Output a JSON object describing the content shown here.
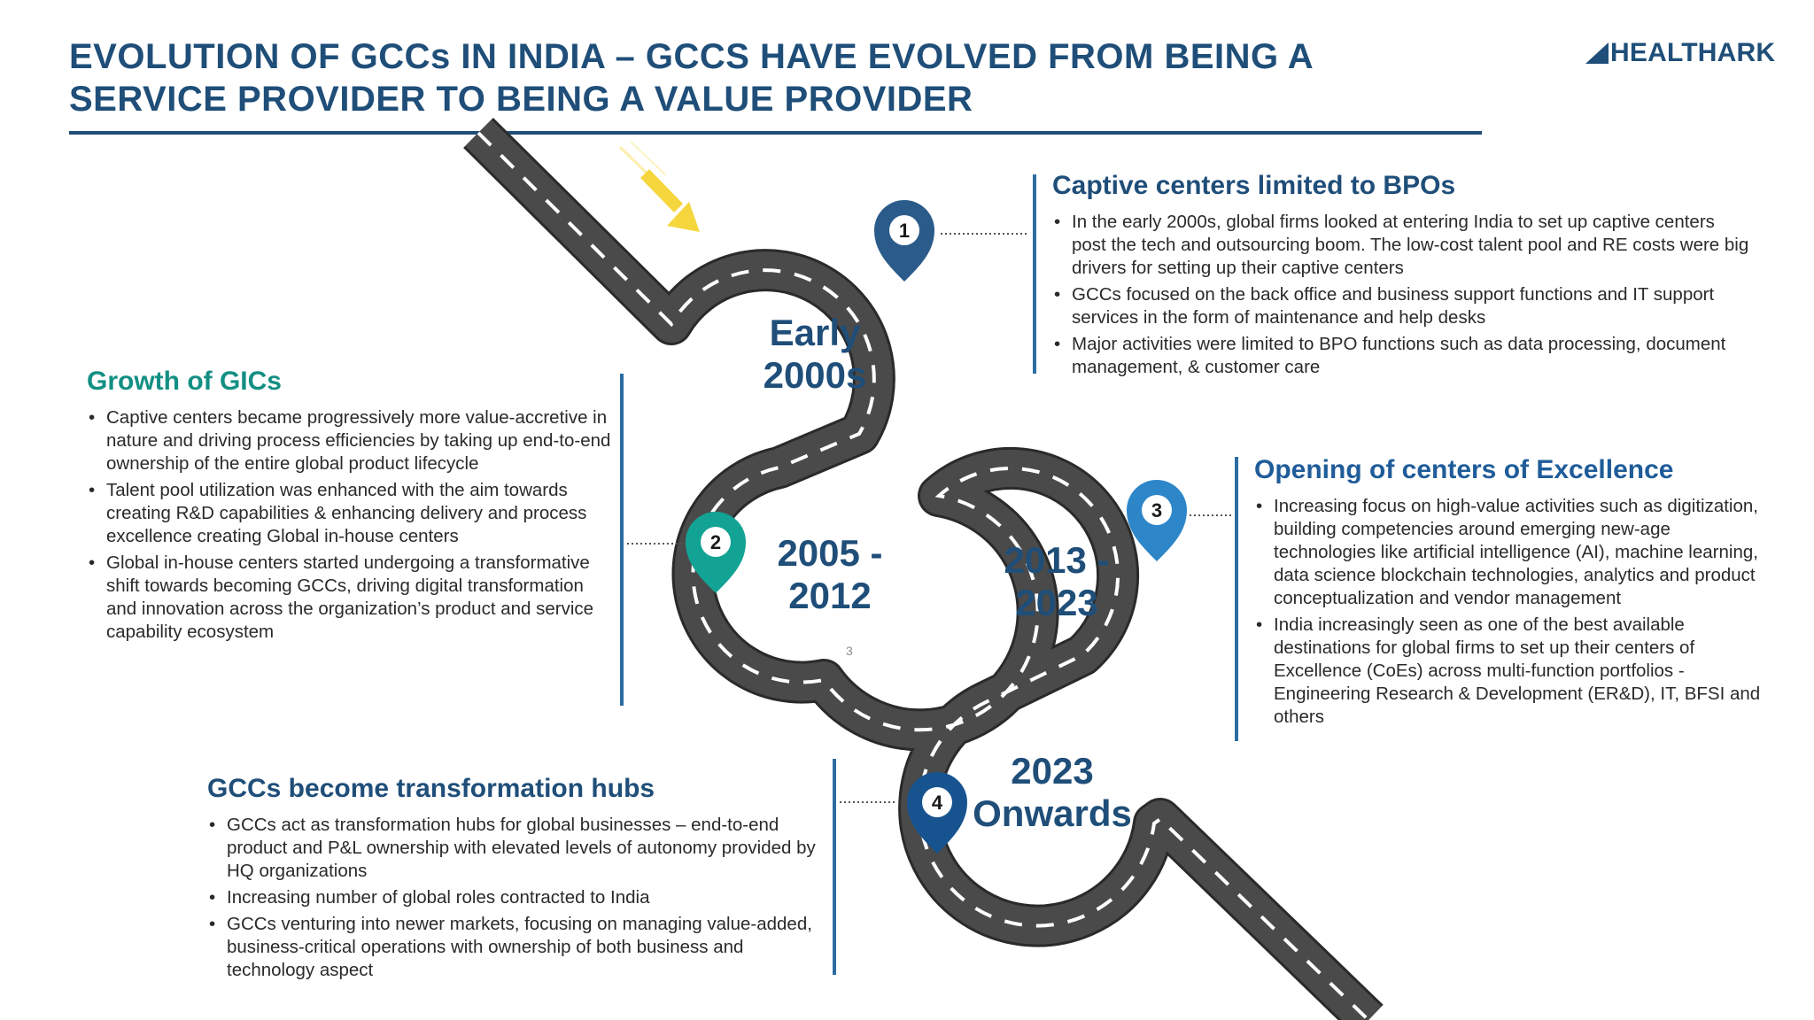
{
  "title": "EVOLUTION OF GCCs IN INDIA – GCCS HAVE EVOLVED FROM BEING A SERVICE PROVIDER TO BEING A VALUE PROVIDER",
  "logo": {
    "text": "HEALTHARK",
    "icon": "triangle-logo-icon"
  },
  "colors": {
    "title": "#1f4e79",
    "road": "#4a4a4a",
    "road_edge": "#2a2a2a",
    "teal": "#138f83",
    "blue": "#1f5c99",
    "accent_line": "#2b6ca3",
    "arrow": "#f5d63d"
  },
  "milestones": [
    {
      "number": "1",
      "era_line1": "Early",
      "era_line2": "2000s",
      "pin_color": "#2b5b8a"
    },
    {
      "number": "2",
      "era_line1": "2005 -",
      "era_line2": "2012",
      "pin_color": "#13a394"
    },
    {
      "number": "3",
      "era_line1": "2013 -",
      "era_line2": "2023",
      "pin_color": "#2d86c8"
    },
    {
      "number": "4",
      "era_line1": "2023",
      "era_line2": "Onwards",
      "pin_color": "#17538f"
    }
  ],
  "sections": {
    "captive": {
      "heading": "Captive centers limited to BPOs",
      "bullets": [
        "In the early 2000s, global firms looked at entering India to set up captive centers post the tech and outsourcing boom. The low-cost talent pool and RE costs were big drivers for setting up their captive centers",
        "GCCs focused on the back office and business support functions and IT support services in the form of maintenance and help desks",
        "Major activities were limited to BPO functions such as data processing, document management, & customer care"
      ]
    },
    "gics": {
      "heading": "Growth of GICs",
      "bullets": [
        "Captive centers became progressively more value-accretive in nature and driving process efficiencies by taking up end-to-end ownership of the entire global product lifecycle",
        "Talent pool utilization was enhanced with the aim towards creating R&D capabilities & enhancing delivery and process excellence creating Global in-house centers",
        "Global in-house centers started undergoing a transformative shift towards becoming GCCs, driving digital transformation and innovation across the organization’s product and service capability ecosystem"
      ]
    },
    "coe": {
      "heading": "Opening of centers of Excellence",
      "bullets": [
        "Increasing focus on high-value activities such as digitization, building competencies around emerging new-age technologies like artificial intelligence (AI), machine learning, data science blockchain technologies, analytics and product conceptualization and vendor management",
        "India increasingly seen as one of the best available destinations for global firms to set up their centers of Excellence (CoEs) across multi-function portfolios - Engineering Research & Development (ER&D), IT, BFSI and others"
      ]
    },
    "hubs": {
      "heading": "GCCs become transformation hubs",
      "bullets": [
        "GCCs act as transformation hubs for global businesses – end-to-end product and P&L ownership with elevated levels of autonomy provided by HQ organizations",
        "Increasing number of global roles contracted to India",
        "GCCs venturing into newer markets, focusing on managing value-added, business-critical operations with ownership of both business and technology aspect"
      ]
    }
  },
  "page_number": "3"
}
